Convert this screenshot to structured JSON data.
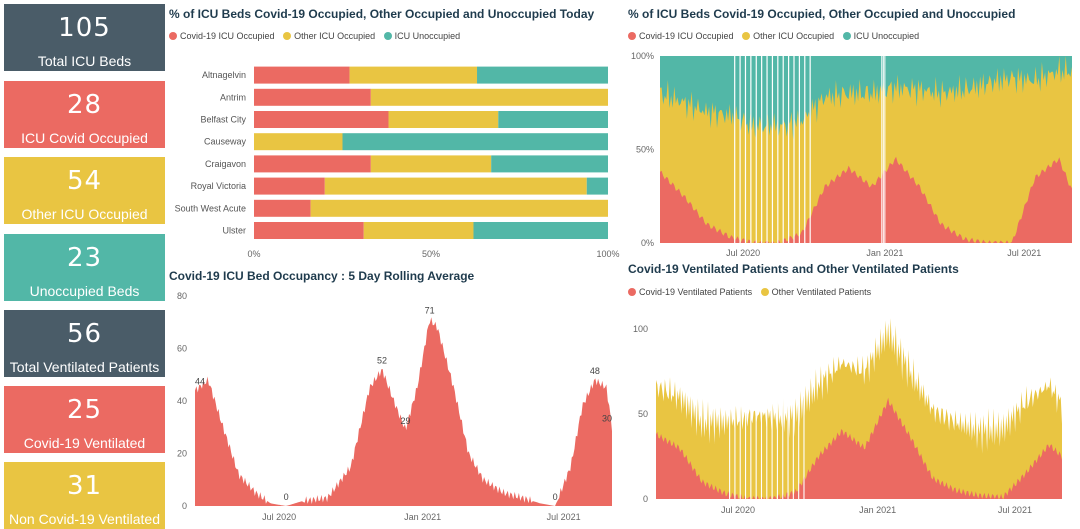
{
  "kpis": {
    "total_icu_beds": {
      "value": "105",
      "label": "Total ICU Beds"
    },
    "icu_covid_occupied": {
      "value": "28",
      "label": "ICU Covid Occupied"
    },
    "other_icu_occupied": {
      "value": "54",
      "label": "Other ICU Occupied"
    },
    "unoccupied_beds": {
      "value": "23",
      "label": "Unoccupied Beds"
    },
    "total_ventilated": {
      "value": "56",
      "label": "Total Ventilated Patients"
    },
    "covid_ventilated": {
      "value": "25",
      "label": "Covid-19 Ventilated"
    },
    "non_covid_ventilated": {
      "value": "31",
      "label": "Non Covid-19 Ventilated"
    }
  },
  "colors": {
    "covid": "#eb6a62",
    "other": "#e9c542",
    "unoccupied": "#52b7a7",
    "dark": "#4a5c68"
  },
  "chart_data": [
    {
      "type": "bar",
      "orientation": "horizontal-stacked-100",
      "title": "% of ICU Beds Covid-19 Occupied, Other Occupied and Unoccupied Today",
      "categories": [
        "Altnagelvin",
        "Antrim",
        "Belfast City",
        "Causeway",
        "Craigavon",
        "Royal Victoria",
        "South West Acute",
        "Ulster"
      ],
      "series": [
        {
          "name": "Covid-19 ICU Occupied",
          "values": [
            27,
            33,
            38,
            0,
            33,
            20,
            16,
            31
          ]
        },
        {
          "name": "Other ICU Occupied",
          "values": [
            36,
            67,
            31,
            25,
            34,
            74,
            84,
            31
          ]
        },
        {
          "name": "ICU Unoccupied",
          "values": [
            37,
            0,
            31,
            75,
            33,
            6,
            0,
            38
          ]
        }
      ],
      "xticks": [
        "0%",
        "50%",
        "100%"
      ],
      "legend": "top-left"
    },
    {
      "type": "area",
      "stacked": "100%",
      "title": "% of ICU Beds Covid-19 Occupied, Other Occupied and Unoccupied",
      "legend_labels": [
        "Covid-19 ICU Occupied",
        "Other ICU Occupied",
        "ICU Unoccupied"
      ],
      "x_anchor_dates": [
        "2020-03-15",
        "2020-04-15",
        "2020-05-15",
        "2020-06-15",
        "2020-07-15",
        "2020-08-15",
        "2020-09-15",
        "2020-10-15",
        "2020-11-15",
        "2020-12-15",
        "2021-01-15",
        "2021-02-15",
        "2021-03-15",
        "2021-04-15",
        "2021-05-15",
        "2021-06-15",
        "2021-07-15",
        "2021-08-15",
        "2021-09-01"
      ],
      "covid_pct": [
        38,
        25,
        10,
        3,
        0,
        0,
        5,
        30,
        40,
        30,
        45,
        30,
        10,
        2,
        0,
        0,
        35,
        45,
        28
      ],
      "other_pct": [
        42,
        50,
        60,
        65,
        62,
        62,
        60,
        48,
        40,
        50,
        38,
        52,
        70,
        80,
        85,
        88,
        52,
        47,
        64
      ],
      "xticks": [
        "Jul 2020",
        "Jan 2021",
        "Jul 2021"
      ],
      "yticks": [
        "0%",
        "50%",
        "100%"
      ],
      "legend": "top-left"
    },
    {
      "type": "area",
      "title": "Covid-19 ICU Bed Occupancy : 5 Day Rolling Average",
      "x_anchor_dates": [
        "2020-03-15",
        "2020-04-01",
        "2020-04-20",
        "2020-05-10",
        "2020-06-01",
        "2020-06-20",
        "2020-07-10",
        "2020-08-01",
        "2020-09-01",
        "2020-10-01",
        "2020-10-25",
        "2020-11-10",
        "2020-11-25",
        "2020-12-10",
        "2020-12-25",
        "2021-01-10",
        "2021-01-20",
        "2021-02-10",
        "2021-03-01",
        "2021-03-20",
        "2021-04-15",
        "2021-05-10",
        "2021-06-01",
        "2021-06-20",
        "2021-07-10",
        "2021-07-25",
        "2021-08-10",
        "2021-08-25",
        "2021-09-01"
      ],
      "values": [
        44,
        48,
        30,
        12,
        5,
        1,
        0,
        2,
        3,
        15,
        45,
        52,
        40,
        29,
        45,
        71,
        68,
        45,
        20,
        10,
        5,
        3,
        1,
        0,
        15,
        38,
        48,
        45,
        30
      ],
      "point_labels": [
        {
          "date": "2020-03-15",
          "label": "44"
        },
        {
          "date": "2020-07-10",
          "label": "0"
        },
        {
          "date": "2020-11-10",
          "label": "52"
        },
        {
          "date": "2020-12-10",
          "label": "29"
        },
        {
          "date": "2021-01-10",
          "label": "71"
        },
        {
          "date": "2021-06-20",
          "label": "0"
        },
        {
          "date": "2021-08-10",
          "label": "48"
        },
        {
          "date": "2021-09-01",
          "label": "30"
        }
      ],
      "ylim": [
        0,
        80
      ],
      "yticks": [
        "0",
        "20",
        "40",
        "60",
        "80"
      ],
      "xticks": [
        "Jul 2020",
        "Jan 2021",
        "Jul 2021"
      ]
    },
    {
      "type": "area",
      "stacked": true,
      "title": "Covid-19 Ventilated Patients and Other Ventilated Patients",
      "legend_labels": [
        "Covid-19 Ventilated Patients",
        "Other Ventilated Patients"
      ],
      "x_anchor_dates": [
        "2020-03-15",
        "2020-04-15",
        "2020-05-15",
        "2020-06-15",
        "2020-07-15",
        "2020-08-15",
        "2020-09-15",
        "2020-10-15",
        "2020-11-15",
        "2020-12-15",
        "2021-01-15",
        "2021-02-15",
        "2021-03-15",
        "2021-04-15",
        "2021-05-15",
        "2021-06-15",
        "2021-07-15",
        "2021-08-15",
        "2021-09-01"
      ],
      "covid_values": [
        38,
        30,
        10,
        3,
        0,
        0,
        4,
        25,
        40,
        30,
        58,
        35,
        12,
        5,
        2,
        1,
        15,
        32,
        25
      ],
      "other_values": [
        28,
        30,
        35,
        42,
        48,
        48,
        45,
        42,
        40,
        45,
        40,
        38,
        40,
        40,
        38,
        40,
        42,
        35,
        30
      ],
      "ylim": [
        0,
        110
      ],
      "yticks": [
        "0",
        "50",
        "100"
      ],
      "xticks": [
        "Jul 2020",
        "Jan 2021",
        "Jul 2021"
      ],
      "legend": "top-left"
    }
  ]
}
